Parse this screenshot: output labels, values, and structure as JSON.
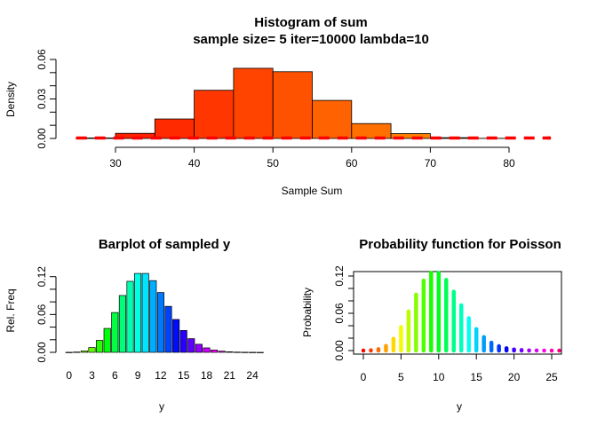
{
  "chart_data": [
    {
      "type": "bar",
      "title": "Histogram of sum",
      "subtitle": "sample size= 5 iter=10000 lambda=10",
      "xlabel": "Sample Sum",
      "ylabel": "Density",
      "xlim": [
        25,
        85
      ],
      "ylim": [
        0,
        0.06
      ],
      "xticks": [
        30,
        40,
        50,
        60,
        70,
        80
      ],
      "yticks": [
        0.0,
        0.03,
        0.06
      ],
      "ytick_labels": [
        "0.00",
        "0.03",
        "0.06"
      ],
      "ytick_minor": [
        0.0,
        0.01,
        0.02,
        0.03,
        0.04,
        0.05,
        0.06
      ],
      "bins": [
        {
          "x0": 25,
          "x1": 30,
          "value": 0.0004
        },
        {
          "x0": 30,
          "x1": 35,
          "value": 0.0039
        },
        {
          "x0": 35,
          "x1": 40,
          "value": 0.0148
        },
        {
          "x0": 40,
          "x1": 45,
          "value": 0.0366
        },
        {
          "x0": 45,
          "x1": 50,
          "value": 0.0533
        },
        {
          "x0": 50,
          "x1": 55,
          "value": 0.0507
        },
        {
          "x0": 55,
          "x1": 60,
          "value": 0.0289
        },
        {
          "x0": 60,
          "x1": 65,
          "value": 0.0113
        },
        {
          "x0": 65,
          "x1": 70,
          "value": 0.0037
        },
        {
          "x0": 70,
          "x1": 75,
          "value": 0.0006
        },
        {
          "x0": 75,
          "x1": 80,
          "value": 0.0001
        }
      ],
      "colors": [
        "#ff1a00",
        "#ff2200",
        "#ff2a00",
        "#ff3600",
        "#ff4400",
        "#ff5200",
        "#ff6200",
        "#ff7000",
        "#ff8000",
        "#ff9000",
        "#ffa000"
      ],
      "overlay": {
        "style": "dashed",
        "color": "#ff0000",
        "x": [
          25,
          85
        ],
        "y": [
          0.0003,
          0.0003
        ]
      }
    },
    {
      "type": "bar",
      "title": "Barplot of sampled y",
      "xlabel": "y",
      "ylabel": "Rel. Freq",
      "categories": [
        0,
        1,
        2,
        3,
        4,
        5,
        6,
        7,
        8,
        9,
        10,
        11,
        12,
        13,
        14,
        15,
        16,
        17,
        18,
        19,
        20,
        21,
        22,
        23,
        24,
        25
      ],
      "xtick_labels": [
        "0",
        "3",
        "6",
        "9",
        "12",
        "15",
        "18",
        "21",
        "24"
      ],
      "values": [
        0.0001,
        0.0005,
        0.0022,
        0.0076,
        0.019,
        0.0379,
        0.0631,
        0.0901,
        0.1126,
        0.1251,
        0.1251,
        0.1137,
        0.0948,
        0.0729,
        0.0521,
        0.0347,
        0.0217,
        0.0128,
        0.0071,
        0.0037,
        0.0019,
        0.0009,
        0.0004,
        0.0002,
        0.0001,
        0.0
      ],
      "ylim": [
        0,
        0.13
      ],
      "yticks": [
        0.0,
        0.06,
        0.12
      ],
      "ytick_labels": [
        "0.00",
        "0.06",
        "0.12"
      ],
      "ytick_minor": [
        0.0,
        0.02,
        0.04,
        0.06,
        0.08,
        0.1,
        0.12
      ]
    },
    {
      "type": "line",
      "title": "Probability function for Poisson",
      "xlabel": "y",
      "ylabel": "Probability",
      "x": [
        0,
        1,
        2,
        3,
        4,
        5,
        6,
        7,
        8,
        9,
        10,
        11,
        12,
        13,
        14,
        15,
        16,
        17,
        18,
        19,
        20,
        21,
        22,
        23,
        24,
        25,
        26
      ],
      "y": [
        5e-05,
        0.00045,
        0.00227,
        0.00757,
        0.01892,
        0.03783,
        0.06306,
        0.09008,
        0.1126,
        0.12511,
        0.12511,
        0.11374,
        0.09478,
        0.07291,
        0.05208,
        0.03472,
        0.0217,
        0.01276,
        0.00709,
        0.00373,
        0.00187,
        0.00089,
        0.0004,
        0.00018,
        7e-05,
        3e-05,
        1e-05
      ],
      "xlim": [
        0,
        26
      ],
      "ylim": [
        0,
        0.13
      ],
      "xticks": [
        0,
        5,
        10,
        15,
        20,
        25
      ],
      "yticks": [
        0.0,
        0.06,
        0.12
      ],
      "ytick_labels": [
        "0.00",
        "0.06",
        "0.12"
      ],
      "ytick_minor": [
        0.0,
        0.02,
        0.04,
        0.06,
        0.08,
        0.1,
        0.12
      ]
    }
  ]
}
